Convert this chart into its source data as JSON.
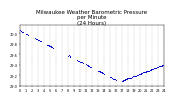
{
  "title": "Milwaukee Weather Barometric Pressure\nper Minute\n(24 Hours)",
  "title_fontsize": 4.0,
  "dot_color": "#0000cc",
  "dot_size": 0.5,
  "background_color": "#ffffff",
  "grid_color": "#999999",
  "tick_fontsize": 2.5,
  "ylim": [
    29.0,
    30.15
  ],
  "xlim": [
    0,
    1440
  ],
  "ytick_values": [
    29.0,
    29.2,
    29.4,
    29.6,
    29.8,
    30.0
  ],
  "xtick_positions": [
    0,
    60,
    120,
    180,
    240,
    300,
    360,
    420,
    480,
    540,
    600,
    660,
    720,
    780,
    840,
    900,
    960,
    1020,
    1080,
    1140,
    1200,
    1260,
    1320,
    1380,
    1440
  ],
  "xtick_labels": [
    "0",
    "1",
    "2",
    "3",
    "4",
    "5",
    "6",
    "7",
    "8",
    "9",
    "10",
    "11",
    "12",
    "13",
    "14",
    "15",
    "16",
    "17",
    "18",
    "19",
    "20",
    "21",
    "22",
    "23",
    "24"
  ],
  "pressure_segments": [
    {
      "x_start": 0,
      "x_end": 30,
      "y_start": 30.05,
      "y_end": 30.0
    },
    {
      "x_start": 60,
      "x_end": 90,
      "y_start": 29.92,
      "y_end": 29.88
    },
    {
      "x_start": 150,
      "x_end": 210,
      "y_start": 29.8,
      "y_end": 29.73
    },
    {
      "x_start": 270,
      "x_end": 330,
      "y_start": 29.63,
      "y_end": 29.56
    },
    {
      "x_start": 480,
      "x_end": 510,
      "y_start": 29.42,
      "y_end": 29.38
    },
    {
      "x_start": 570,
      "x_end": 630,
      "y_start": 29.33,
      "y_end": 29.27
    },
    {
      "x_start": 660,
      "x_end": 720,
      "y_start": 29.22,
      "y_end": 29.17
    },
    {
      "x_start": 780,
      "x_end": 840,
      "y_start": 29.14,
      "y_end": 29.11
    },
    {
      "x_start": 900,
      "x_end": 960,
      "y_start": 29.1,
      "y_end": 29.08
    },
    {
      "x_start": 1020,
      "x_end": 1080,
      "y_start": 29.1,
      "y_end": 29.12
    },
    {
      "x_start": 1140,
      "x_end": 1200,
      "y_start": 29.14,
      "y_end": 29.18
    },
    {
      "x_start": 1260,
      "x_end": 1320,
      "y_start": 29.2,
      "y_end": 29.25
    },
    {
      "x_start": 1380,
      "x_end": 1440,
      "y_start": 29.3,
      "y_end": 29.38
    }
  ]
}
